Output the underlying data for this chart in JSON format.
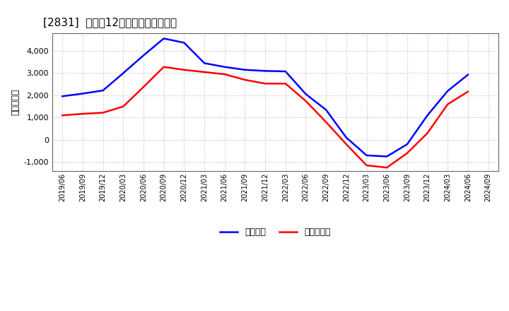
{
  "title": "[2831]  利益の12か月移動合計の推移",
  "ylabel": "（百万円）",
  "legend_labels": [
    "経常利益",
    "当期純利益"
  ],
  "line_colors": [
    "#0000FF",
    "#FF0000"
  ],
  "ylim": [
    -1400,
    4800
  ],
  "yticks": [
    -1000,
    0,
    1000,
    2000,
    3000,
    4000
  ],
  "background_color": "#FFFFFF",
  "grid_color": "#BBBBBB",
  "dates": [
    "2019/06",
    "2019/09",
    "2019/12",
    "2020/03",
    "2020/06",
    "2020/09",
    "2020/12",
    "2021/03",
    "2021/06",
    "2021/09",
    "2021/12",
    "2022/03",
    "2022/06",
    "2022/09",
    "2022/12",
    "2023/03",
    "2023/06",
    "2023/09",
    "2023/12",
    "2024/03",
    "2024/06",
    "2024/09"
  ],
  "keijo_rieki": [
    1960,
    2080,
    2220,
    3000,
    3800,
    4560,
    4370,
    3450,
    3280,
    3150,
    3100,
    3080,
    2060,
    1350,
    100,
    -700,
    -750,
    -200,
    1100,
    2200,
    2930,
    null
  ],
  "touki_jun_rieki": [
    1100,
    1170,
    1220,
    1500,
    2380,
    3280,
    3150,
    3050,
    2950,
    2700,
    2530,
    2530,
    1750,
    800,
    -200,
    -1150,
    -1250,
    -600,
    300,
    1600,
    2170,
    null
  ]
}
